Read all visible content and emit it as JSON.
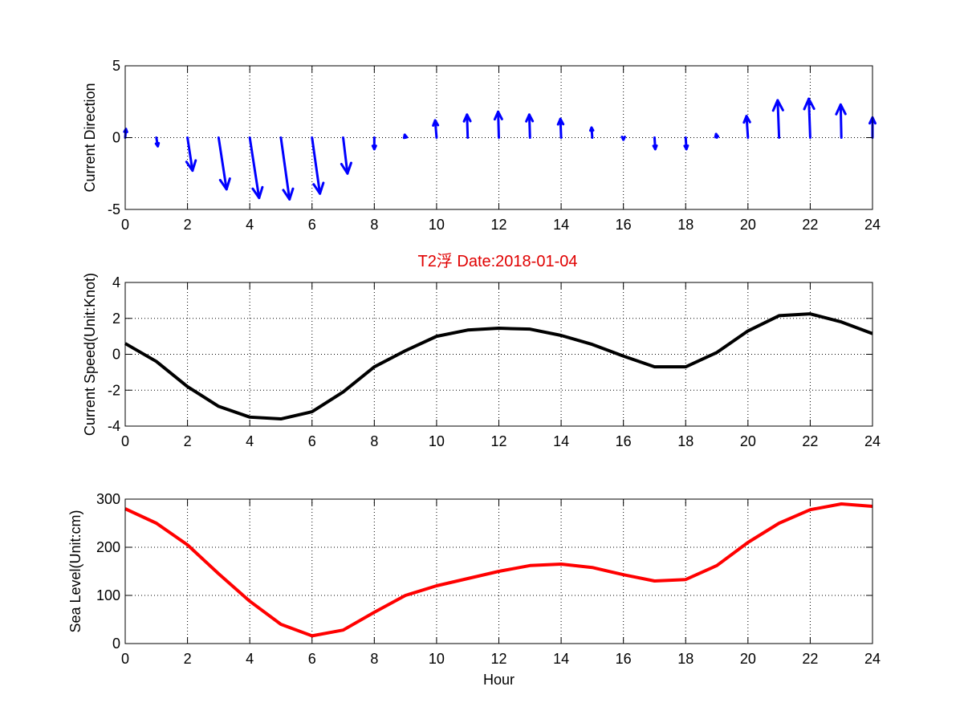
{
  "figure_title": "T2浮   Date:2018-01-04",
  "colors": {
    "direction": "#0000ff",
    "speed": "#000000",
    "sea_level": "#ff0000",
    "title": "#e00000"
  },
  "chart_data": [
    {
      "type": "quiver",
      "ylabel": "Current Direction",
      "xlabel": "",
      "xlim": [
        0,
        24
      ],
      "ylim": [
        -5,
        5
      ],
      "xticks": [
        0,
        2,
        4,
        6,
        8,
        10,
        12,
        14,
        16,
        18,
        20,
        22,
        24
      ],
      "yticks": [
        -5,
        0,
        5
      ],
      "grid": true,
      "x": [
        0,
        1,
        2,
        3,
        4,
        5,
        6,
        7,
        8,
        9,
        10,
        11,
        12,
        13,
        14,
        15,
        16,
        17,
        18,
        19,
        20,
        21,
        22,
        23,
        24
      ],
      "u": [
        0.05,
        0.1,
        0.35,
        0.55,
        0.65,
        0.6,
        0.55,
        0.3,
        0.0,
        -0.05,
        -0.1,
        -0.05,
        -0.05,
        -0.05,
        -0.05,
        -0.05,
        0.0,
        0.05,
        0.05,
        -0.05,
        -0.1,
        -0.1,
        -0.1,
        -0.05,
        0.0
      ],
      "v": [
        0.6,
        -0.6,
        -2.3,
        -3.6,
        -4.2,
        -4.3,
        -3.9,
        -2.5,
        -0.8,
        0.2,
        1.2,
        1.6,
        1.8,
        1.6,
        1.3,
        0.7,
        -0.15,
        -0.8,
        -0.8,
        0.25,
        1.5,
        2.6,
        2.7,
        2.3,
        1.4
      ]
    },
    {
      "type": "line",
      "title": "T2浮   Date:2018-01-04",
      "ylabel": "Current Speed(Unit:Knot)",
      "xlabel": "",
      "xlim": [
        0,
        24
      ],
      "ylim": [
        -4,
        4
      ],
      "xticks": [
        0,
        2,
        4,
        6,
        8,
        10,
        12,
        14,
        16,
        18,
        20,
        22,
        24
      ],
      "yticks": [
        -4,
        -2,
        0,
        2,
        4
      ],
      "grid": true,
      "x": [
        0,
        1,
        2,
        3,
        4,
        5,
        6,
        7,
        8,
        9,
        10,
        11,
        12,
        13,
        14,
        15,
        16,
        17,
        18,
        19,
        20,
        21,
        22,
        23,
        24
      ],
      "y": [
        0.6,
        -0.4,
        -1.8,
        -2.9,
        -3.5,
        -3.6,
        -3.2,
        -2.1,
        -0.7,
        0.2,
        1.0,
        1.35,
        1.45,
        1.4,
        1.05,
        0.55,
        -0.1,
        -0.7,
        -0.7,
        0.1,
        1.3,
        2.15,
        2.25,
        1.8,
        1.15
      ]
    },
    {
      "type": "line",
      "ylabel": "Sea Level(Unit:cm)",
      "xlabel": "Hour",
      "xlim": [
        0,
        24
      ],
      "ylim": [
        0,
        300
      ],
      "xticks": [
        0,
        2,
        4,
        6,
        8,
        10,
        12,
        14,
        16,
        18,
        20,
        22,
        24
      ],
      "yticks": [
        0,
        100,
        200,
        300
      ],
      "grid": true,
      "x": [
        0,
        1,
        2,
        3,
        4,
        5,
        6,
        7,
        8,
        9,
        10,
        11,
        12,
        13,
        14,
        15,
        16,
        17,
        18,
        19,
        20,
        21,
        22,
        23,
        24
      ],
      "y": [
        280,
        250,
        205,
        145,
        88,
        40,
        16,
        28,
        65,
        100,
        120,
        135,
        150,
        162,
        165,
        158,
        143,
        130,
        133,
        162,
        210,
        250,
        278,
        290,
        285
      ]
    }
  ]
}
